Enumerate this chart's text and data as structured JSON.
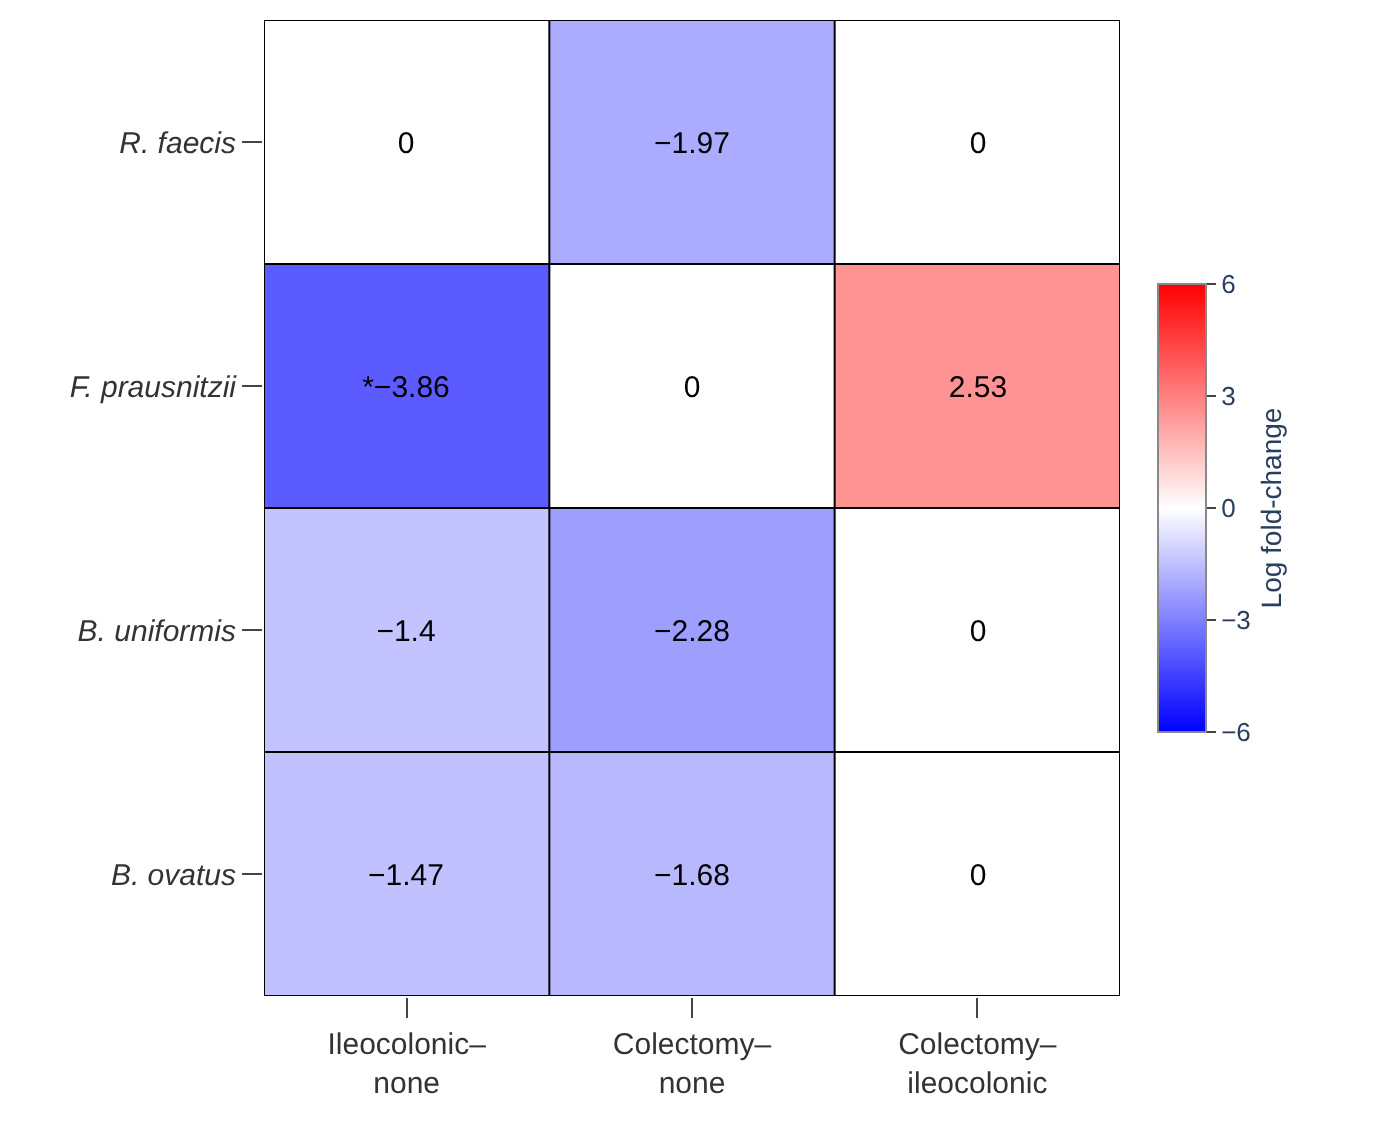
{
  "chart_data": {
    "type": "heatmap",
    "categories": [
      "Ileocolonic–\nnone",
      "Colectomy–\nnone",
      "Colectomy–\nileocolonic"
    ],
    "y_categories": [
      "R. faecis",
      "F. prausnitzii",
      "B. uniformis",
      "B. ovatus"
    ],
    "cells": [
      [
        0,
        -1.97,
        0
      ],
      [
        -3.86,
        0,
        2.53
      ],
      [
        -1.4,
        -2.28,
        0
      ],
      [
        -1.47,
        -1.68,
        0
      ]
    ],
    "cell_labels": [
      [
        "0",
        "−1.97",
        "0"
      ],
      [
        "*−3.86",
        "0",
        "2.53"
      ],
      [
        "−1.4",
        "−2.28",
        "0"
      ],
      [
        "−1.47",
        "−1.68",
        "0"
      ]
    ],
    "clabel": "Log fold-change",
    "clim": [
      -6,
      6
    ],
    "cticks": [
      {
        "value": -6,
        "label": "−6"
      },
      {
        "value": -3,
        "label": "−3"
      },
      0,
      3,
      6
    ]
  }
}
